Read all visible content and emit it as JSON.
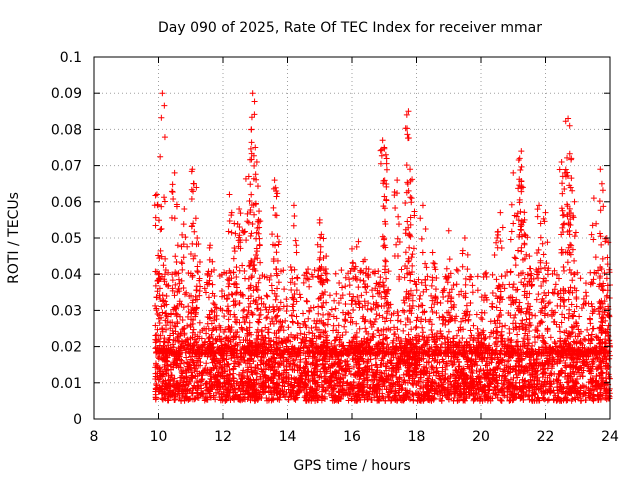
{
  "chart_data": {
    "type": "scatter",
    "title": "Day 090 of 2025, Rate Of TEC Index for receiver mmar",
    "xlabel": "GPS time / hours",
    "ylabel": "ROTI / TECUs",
    "xlim": [
      8,
      24
    ],
    "ylim": [
      0,
      0.1
    ],
    "xticks": [
      8,
      10,
      12,
      14,
      16,
      18,
      20,
      22,
      24
    ],
    "xtick_labels": [
      "8",
      "10",
      "12",
      "14",
      "16",
      "18",
      "20",
      "22",
      "24"
    ],
    "yticks": [
      0,
      0.01,
      0.02,
      0.03,
      0.04,
      0.05,
      0.06,
      0.07,
      0.08,
      0.09,
      0.1
    ],
    "ytick_labels": [
      "0",
      "0.01",
      "0.02",
      "0.03",
      "0.04",
      "0.05",
      "0.06",
      "0.07",
      "0.08",
      "0.09",
      "0.1"
    ],
    "grid": true,
    "marker": "+",
    "series": [
      {
        "name": "ROTI",
        "color": "#ff0000",
        "x_range": [
          9.9,
          24.0
        ],
        "typical_range": [
          0.005,
          0.02
        ],
        "points": [
          [
            9.95,
            0.062
          ],
          [
            9.98,
            0.059
          ],
          [
            10.12,
            0.09
          ],
          [
            10.2,
            0.04
          ],
          [
            10.5,
            0.068
          ],
          [
            10.6,
            0.048
          ],
          [
            10.8,
            0.058
          ],
          [
            11.05,
            0.069
          ],
          [
            11.1,
            0.065
          ],
          [
            11.2,
            0.05
          ],
          [
            11.6,
            0.048
          ],
          [
            11.7,
            0.032
          ],
          [
            12.2,
            0.062
          ],
          [
            12.35,
            0.054
          ],
          [
            12.5,
            0.058
          ],
          [
            12.6,
            0.052
          ],
          [
            12.8,
            0.067
          ],
          [
            12.88,
            0.08
          ],
          [
            12.92,
            0.09
          ],
          [
            13.0,
            0.075
          ],
          [
            13.05,
            0.071
          ],
          [
            13.1,
            0.055
          ],
          [
            13.6,
            0.066
          ],
          [
            13.65,
            0.063
          ],
          [
            14.2,
            0.059
          ],
          [
            15.0,
            0.055
          ],
          [
            15.05,
            0.051
          ],
          [
            15.2,
            0.045
          ],
          [
            16.0,
            0.047
          ],
          [
            16.2,
            0.049
          ],
          [
            16.4,
            0.044
          ],
          [
            16.5,
            0.04
          ],
          [
            16.95,
            0.077
          ],
          [
            17.0,
            0.075
          ],
          [
            17.05,
            0.073
          ],
          [
            17.4,
            0.066
          ],
          [
            17.7,
            0.084
          ],
          [
            17.75,
            0.085
          ],
          [
            17.8,
            0.069
          ],
          [
            17.85,
            0.061
          ],
          [
            18.2,
            0.059
          ],
          [
            18.5,
            0.046
          ],
          [
            19.0,
            0.052
          ],
          [
            19.5,
            0.05
          ],
          [
            20.5,
            0.05
          ],
          [
            20.6,
            0.057
          ],
          [
            21.0,
            0.068
          ],
          [
            21.2,
            0.072
          ],
          [
            21.25,
            0.074
          ],
          [
            21.3,
            0.064
          ],
          [
            21.35,
            0.055
          ],
          [
            21.5,
            0.045
          ],
          [
            21.8,
            0.059
          ],
          [
            22.0,
            0.057
          ],
          [
            22.5,
            0.071
          ],
          [
            22.6,
            0.068
          ],
          [
            22.7,
            0.083
          ],
          [
            22.75,
            0.081
          ],
          [
            22.8,
            0.072
          ],
          [
            22.9,
            0.06
          ],
          [
            23.5,
            0.061
          ],
          [
            23.7,
            0.069
          ],
          [
            23.75,
            0.065
          ],
          [
            23.9,
            0.05
          ],
          [
            24.0,
            0.037
          ]
        ]
      }
    ]
  }
}
